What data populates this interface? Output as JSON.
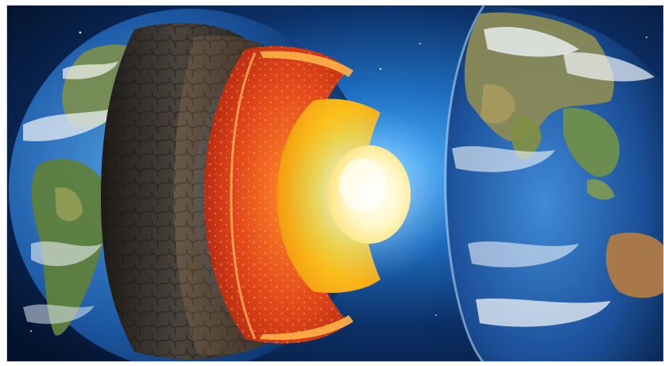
{
  "image": {
    "subject": "earth-layers-cutaway",
    "colors": {
      "space_dark": "#061a3a",
      "space_glow": "#2f7fd0",
      "ocean": "#1f5fae",
      "land": "#6f8f4a",
      "cloud": "#e8eef4",
      "crust": "#3a352f",
      "mantle": "#e8501a",
      "outer_core": "#ffd21f",
      "inner_core": "#fff7c8"
    }
  }
}
